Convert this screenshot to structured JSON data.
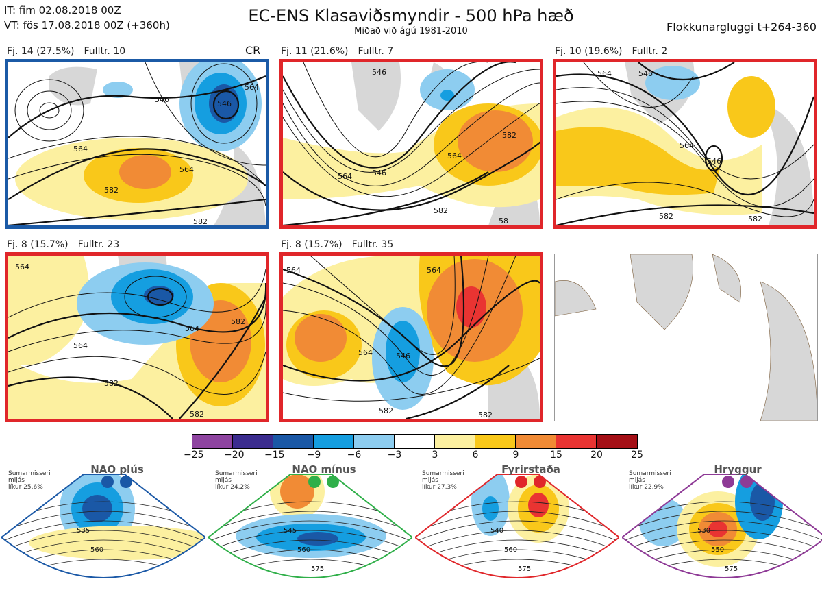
{
  "header": {
    "it_line": "IT: fim 02.08.2018 00Z",
    "vt_line": "VT: fös 17.08.2018 00Z  (+360h)",
    "title": "EC-ENS Klasaviðsmyndir - 500 hPa hæð",
    "subtitle": "Miðað við ágú 1981-2010",
    "window": "Flokkunargluggi t+264-360"
  },
  "panels": [
    {
      "fj": "Fj. 14 (27.5%)",
      "fulltr": "Fulltr. 10",
      "tag": "CR",
      "frame": "#1b5aa6",
      "contour_labels": [
        "546",
        "564",
        "564",
        "582",
        "582",
        "546",
        "564"
      ]
    },
    {
      "fj": "Fj. 11 (21.6%)",
      "fulltr": "Fulltr. 7",
      "frame": "#e0262a",
      "contour_labels": [
        "546",
        "564",
        "546",
        "564",
        "582",
        "582",
        "58"
      ]
    },
    {
      "fj": "Fj. 10 (19.6%)",
      "fulltr": "Fulltr. 2",
      "frame": "#e0262a",
      "contour_labels": [
        "546",
        "564",
        "546",
        "564",
        "582",
        "582"
      ]
    },
    {
      "fj": "Fj. 8 (15.7%)",
      "fulltr": "Fulltr. 23",
      "frame": "#e0262a",
      "contour_labels": [
        "564",
        "564",
        "582",
        "564",
        "582",
        "582"
      ]
    },
    {
      "fj": "Fj. 8 (15.7%)",
      "fulltr": "Fulltr. 35",
      "frame": "#e0262a",
      "contour_labels": [
        "564",
        "564",
        "546",
        "582",
        "582",
        "564"
      ]
    }
  ],
  "colorbar": {
    "ticks": [
      "−25",
      "−20",
      "−15",
      "−9",
      "−6",
      "−3",
      "3",
      "6",
      "9",
      "15",
      "20",
      "25"
    ],
    "colors": [
      "#8e44a0",
      "#3b2c8f",
      "#1a58a6",
      "#159ee0",
      "#8dcdf0",
      "#ffffff",
      "#fcf0a0",
      "#f9c81a",
      "#f18b35",
      "#e93432",
      "#a40f16"
    ]
  },
  "regimes": [
    {
      "name": "NAO plús",
      "season": "Sumarmisseri",
      "method": "mijás",
      "likelihood": "líkur 25,6%",
      "color": "#1a58a6",
      "labels": [
        "535",
        "560"
      ]
    },
    {
      "name": "NAO mínus",
      "season": "Sumarmisseri",
      "method": "mijás",
      "likelihood": "líkur 24,2%",
      "color": "#2faf49",
      "labels": [
        "545",
        "560",
        "575"
      ]
    },
    {
      "name": "Fyrirstaða",
      "season": "Sumarmisseri",
      "method": "mijás",
      "likelihood": "líkur 27,3%",
      "color": "#e0262a",
      "labels": [
        "540",
        "560",
        "575"
      ]
    },
    {
      "name": "Hryggur",
      "season": "Sumarmisseri",
      "method": "mijás",
      "likelihood": "líkur 22,9%",
      "color": "#8e3a96",
      "labels": [
        "530",
        "550",
        "575"
      ]
    }
  ],
  "icons": {
    "land": "greenland-iceland-europe-land-shape",
    "dot": "regime-color-dot"
  }
}
